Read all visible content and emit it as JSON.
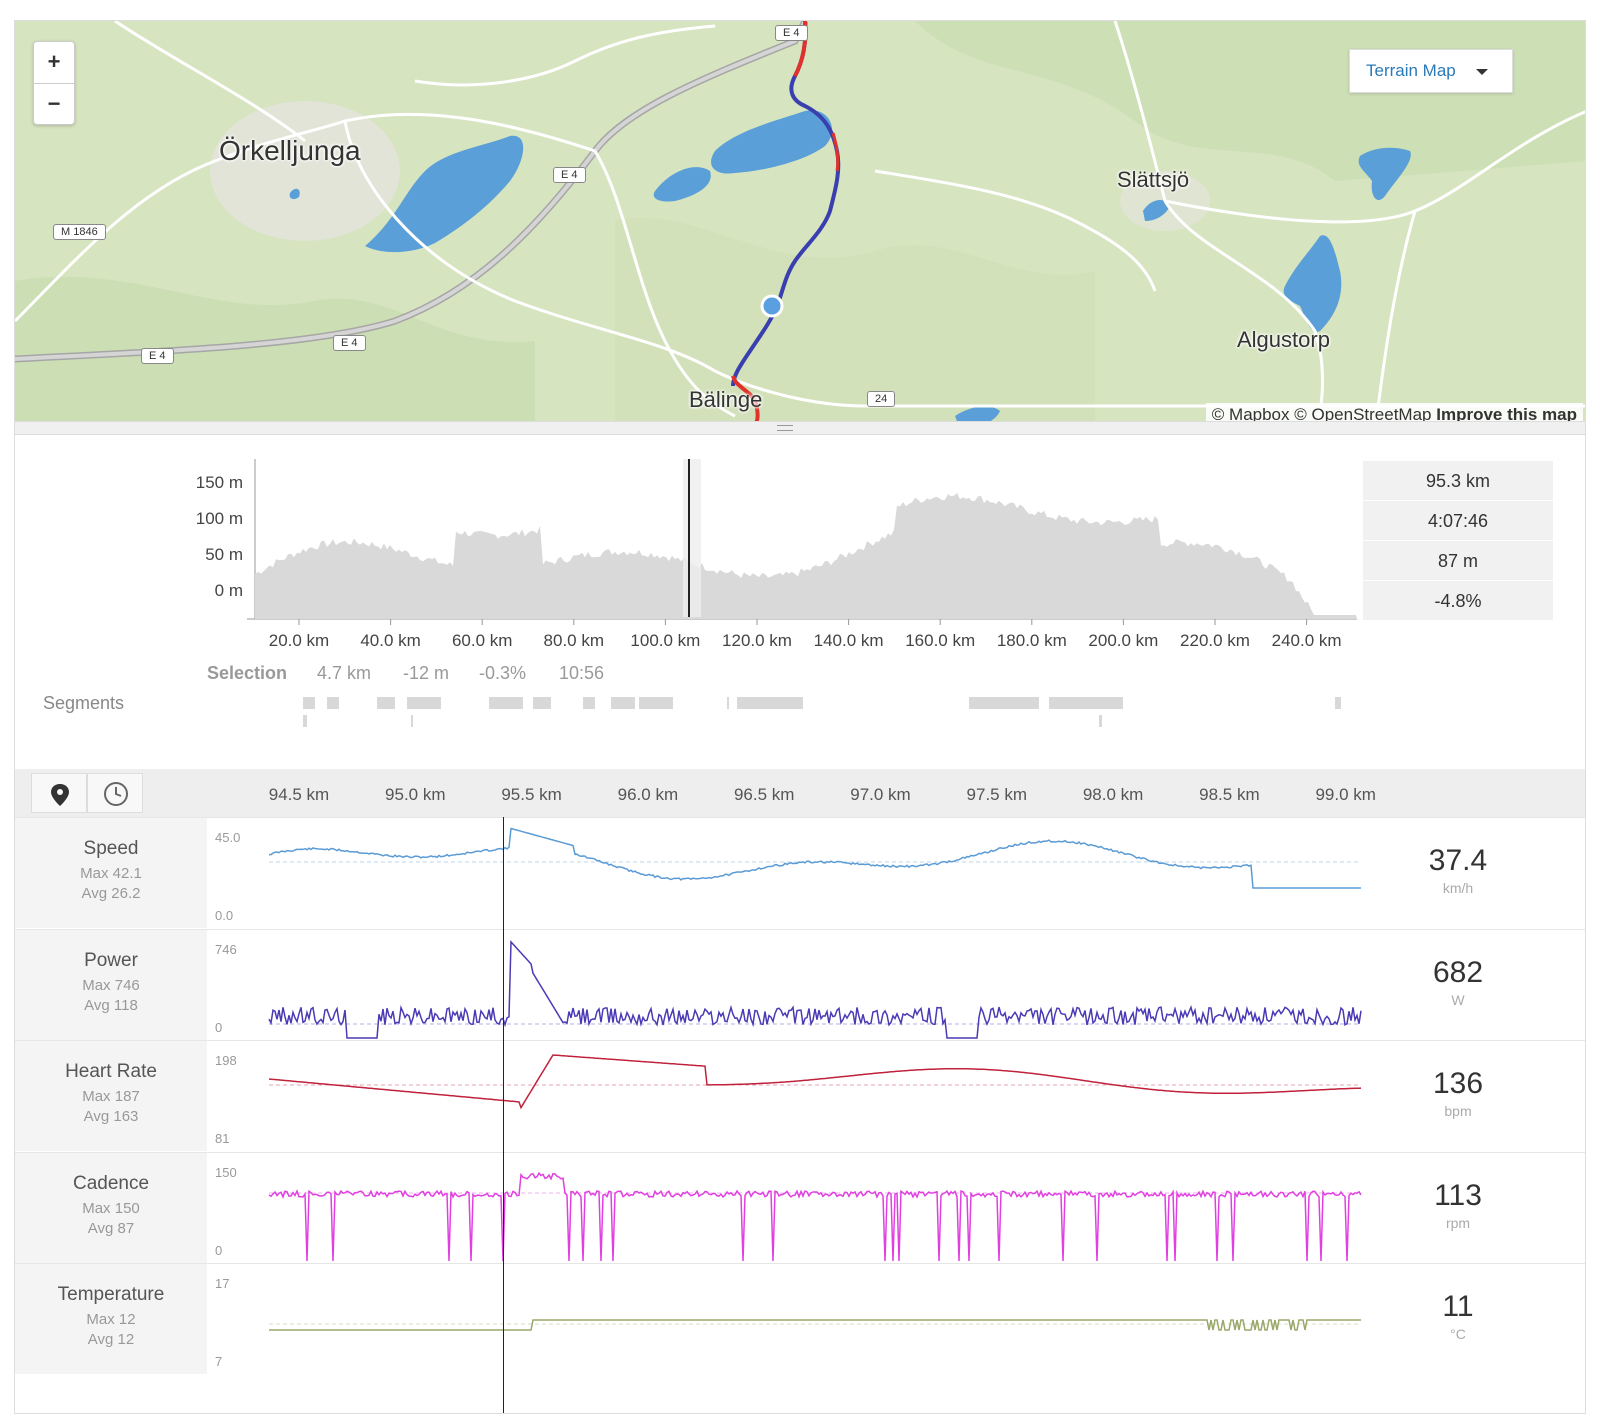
{
  "map": {
    "zoom_in": "+",
    "zoom_out": "−",
    "map_type": "Terrain Map",
    "attribution_1": "© Mapbox © OpenStreetMap",
    "attribution_2": "Improve this map",
    "places": [
      "Örkelljunga",
      "Slättsjö",
      "Algustorp",
      "Bälinge"
    ],
    "road_shields": [
      "E 4",
      "E 4",
      "E 4",
      "E 4",
      "M 1846",
      "24"
    ]
  },
  "elevation": {
    "y_ticks": [
      "150 m",
      "100 m",
      "50 m",
      "0 m"
    ],
    "x_ticks": [
      "20.0 km",
      "40.0 km",
      "60.0 km",
      "80.0 km",
      "100.0 km",
      "120.0 km",
      "140.0 km",
      "160.0 km",
      "180.0 km",
      "200.0 km",
      "220.0 km",
      "240.0 km"
    ],
    "stats": [
      "95.3 km",
      "4:07:46",
      "87 m",
      "-4.8%"
    ],
    "selection_label": "Selection",
    "selection_values": [
      "4.7 km",
      "-12 m",
      "-0.3%",
      "10:56"
    ],
    "segments_label": "Segments"
  },
  "streams": {
    "tabs": [
      "map-pin-icon",
      "clock-icon"
    ],
    "x_ticks": [
      "94.5 km",
      "95.0 km",
      "95.5 km",
      "96.0 km",
      "96.5 km",
      "97.0 km",
      "97.5 km",
      "98.0 km",
      "98.5 km",
      "99.0 km"
    ],
    "rows": [
      {
        "name": "Speed",
        "max": "Max 42.1",
        "avg": "Avg 26.2",
        "ymax": "45.0",
        "ymin": "0.0",
        "value": "37.4",
        "unit": "km/h",
        "color": "#5b9bd5"
      },
      {
        "name": "Power",
        "max": "Max 746",
        "avg": "Avg 118",
        "ymax": "746",
        "ymin": "0",
        "value": "682",
        "unit": "W",
        "color": "#4a3ab5"
      },
      {
        "name": "Heart Rate",
        "max": "Max 187",
        "avg": "Avg 163",
        "ymax": "198",
        "ymin": "81",
        "value": "136",
        "unit": "bpm",
        "color": "#c0223c"
      },
      {
        "name": "Cadence",
        "max": "Max 150",
        "avg": "Avg 87",
        "ymax": "150",
        "ymin": "0",
        "value": "113",
        "unit": "rpm",
        "color": "#e040e0"
      },
      {
        "name": "Temperature",
        "max": "Max 12",
        "avg": "Avg 12",
        "ymax": "17",
        "ymin": "7",
        "value": "11",
        "unit": "°C",
        "color": "#9aa86a"
      }
    ]
  }
}
